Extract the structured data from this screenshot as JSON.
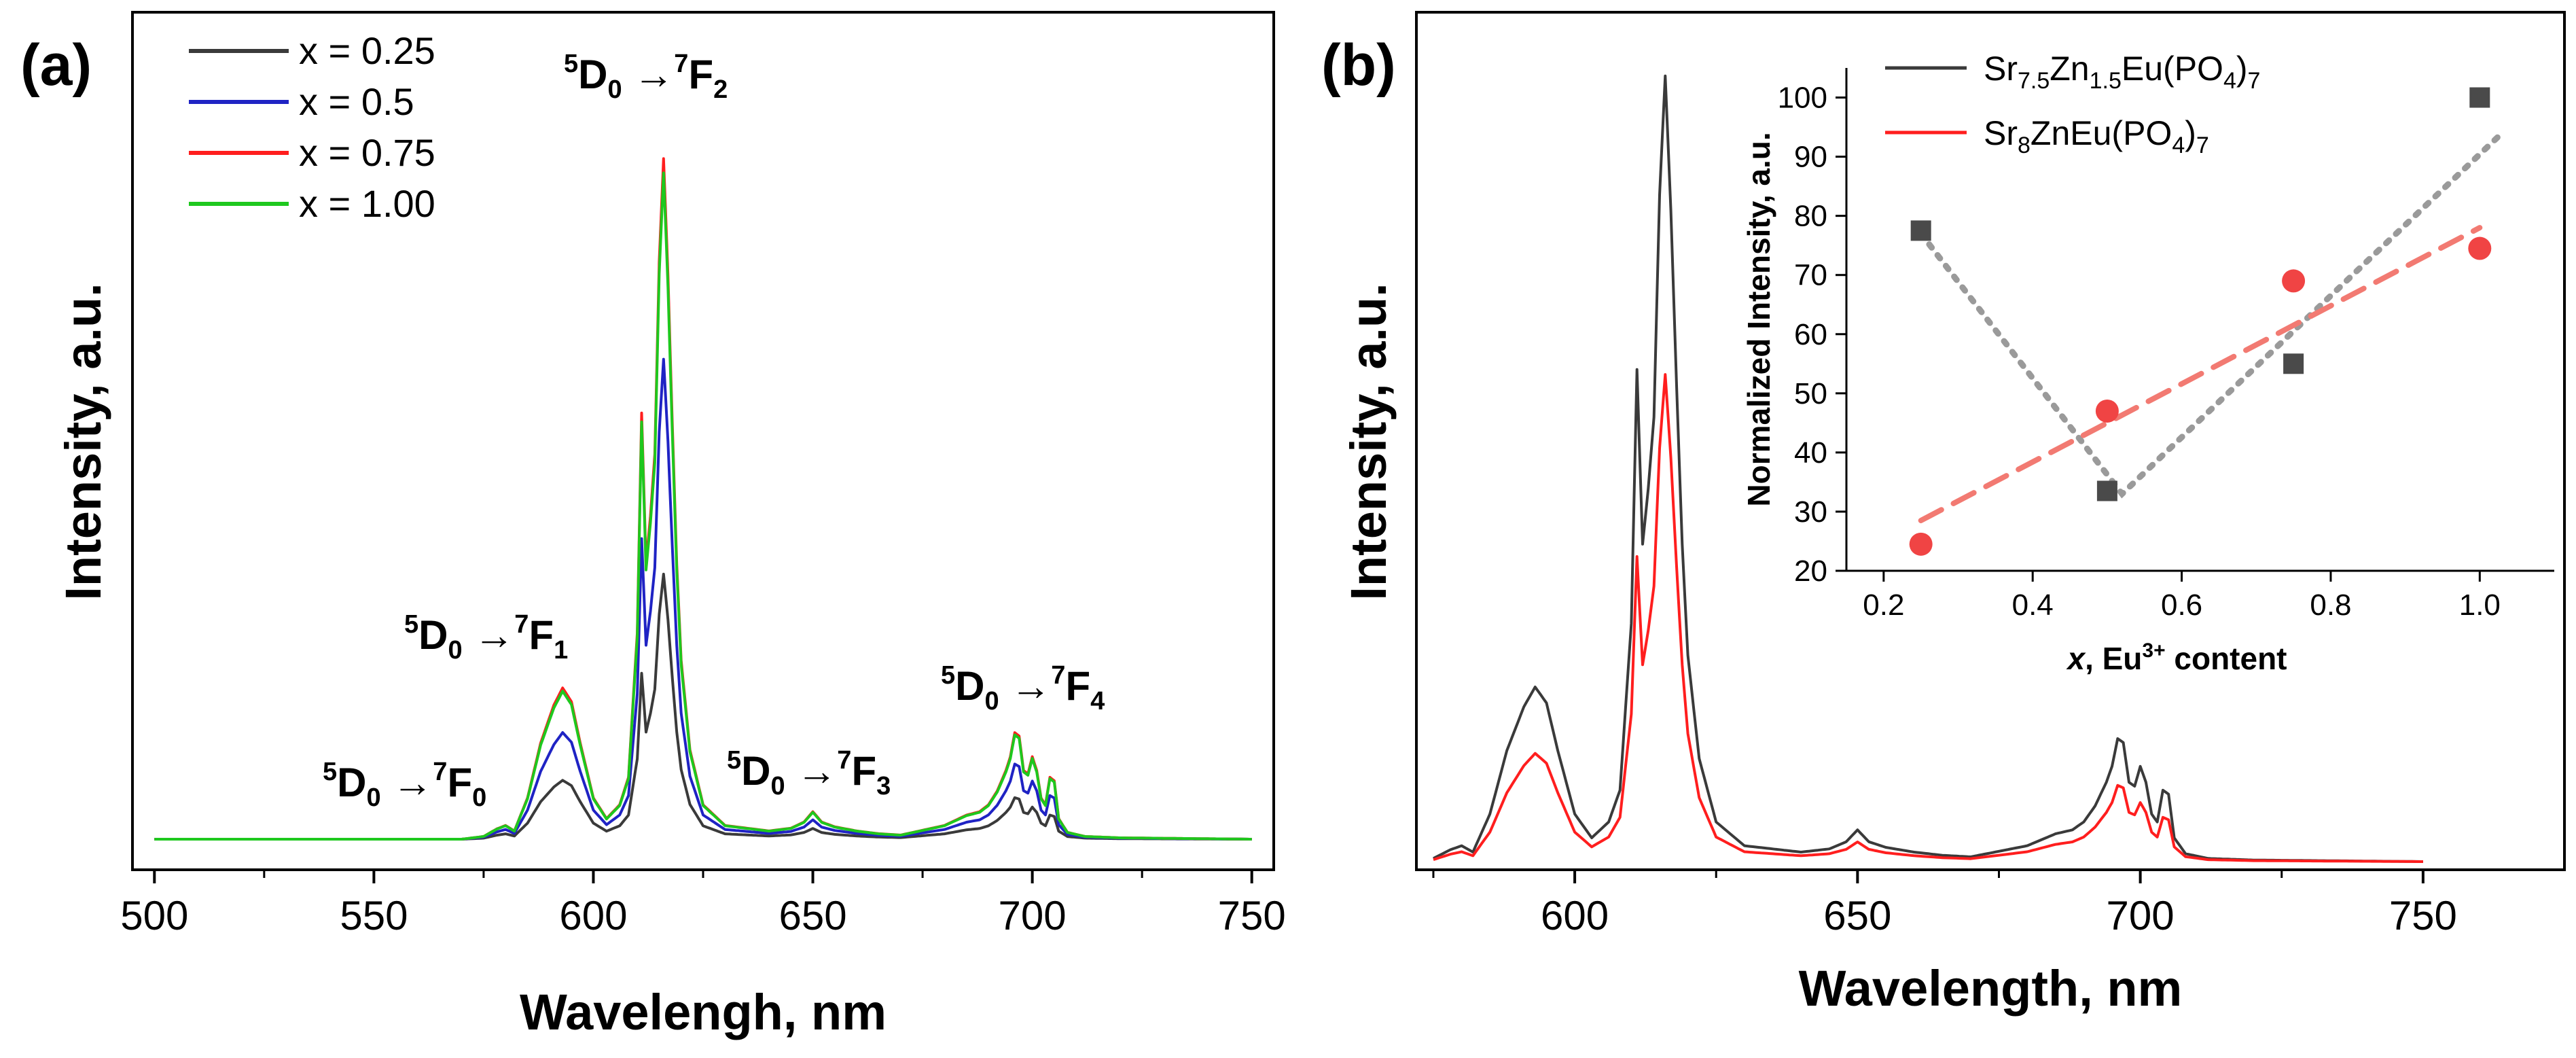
{
  "figure": {
    "panel_a_label": "(a)",
    "panel_b_label": "(b)",
    "colors": {
      "black": "#3a3a3a",
      "blue": "#1f23c4",
      "red": "#ff1e1e",
      "green": "#1ec81e",
      "grey_dot": "#9a9a9a",
      "salmon": "#f27a72",
      "square": "#4a4a4a",
      "circle": "#f04444"
    }
  },
  "chart_data": [
    {
      "type": "line",
      "title": "",
      "xlabel": "Wavelengh, nm",
      "ylabel": "Intensity, a.u.",
      "xlim": [
        495,
        755
      ],
      "ylim": [
        0,
        1.0
      ],
      "xticks": [
        500,
        550,
        600,
        650,
        700,
        750
      ],
      "yticks_visible": false,
      "legend_position": "top-left",
      "series": [
        {
          "name": "x = 0.25",
          "color": "#3a3a3a",
          "scale": 0.37
        },
        {
          "name": "x = 0.5",
          "color": "#1f23c4",
          "scale": 0.67
        },
        {
          "name": "x = 0.75",
          "color": "#ff1e1e",
          "scale": 0.95
        },
        {
          "name": "x = 1.00",
          "color": "#1ec81e",
          "scale": 0.93
        }
      ],
      "profile_x": [
        500,
        570,
        575,
        578,
        580,
        582,
        585,
        588,
        591,
        593,
        595,
        597,
        600,
        603,
        606,
        608,
        610,
        611,
        612,
        613,
        614,
        615,
        616,
        617,
        618,
        619,
        620,
        622,
        625,
        630,
        640,
        645,
        648,
        650,
        652,
        655,
        660,
        665,
        670,
        680,
        685,
        688,
        690,
        692,
        694,
        695,
        696,
        697,
        698,
        699,
        700,
        701,
        702,
        703,
        704,
        705,
        706,
        708,
        712,
        720,
        750
      ],
      "profile_y": [
        0,
        0,
        0.004,
        0.015,
        0.02,
        0.012,
        0.06,
        0.14,
        0.195,
        0.22,
        0.2,
        0.14,
        0.06,
        0.03,
        0.05,
        0.09,
        0.3,
        0.62,
        0.4,
        0.47,
        0.56,
        0.84,
        0.99,
        0.82,
        0.6,
        0.4,
        0.26,
        0.13,
        0.05,
        0.02,
        0.012,
        0.016,
        0.025,
        0.04,
        0.025,
        0.018,
        0.012,
        0.008,
        0.006,
        0.02,
        0.035,
        0.04,
        0.05,
        0.07,
        0.1,
        0.12,
        0.155,
        0.15,
        0.1,
        0.095,
        0.12,
        0.1,
        0.06,
        0.05,
        0.09,
        0.085,
        0.03,
        0.01,
        0.004,
        0.002,
        0
      ],
      "annotations": [
        {
          "main": "D",
          "pre": "5",
          "sub": "0",
          "arrow": " →",
          "sup": "7",
          "end": "F",
          "endsub": "2"
        },
        {
          "main": "D",
          "pre": "5",
          "sub": "0",
          "arrow": " →",
          "sup": "7",
          "end": "F",
          "endsub": "1"
        },
        {
          "main": "D",
          "pre": "5",
          "sub": "0",
          "arrow": " →",
          "sup": "7",
          "end": "F",
          "endsub": "0"
        },
        {
          "main": "D",
          "pre": "5",
          "sub": "0",
          "arrow": " →",
          "sup": "7",
          "end": "F",
          "endsub": "3"
        },
        {
          "main": "D",
          "pre": "5",
          "sub": "0",
          "arrow": " →",
          "sup": "7",
          "end": "F",
          "endsub": "4"
        }
      ]
    },
    {
      "type": "line",
      "title": "",
      "xlabel": "Wavelength, nm",
      "ylabel": "Intensity, a.u.",
      "xlim": [
        572,
        775
      ],
      "ylim": [
        0,
        1.0
      ],
      "xticks": [
        600,
        650,
        700,
        750
      ],
      "yticks_visible": false,
      "legend_position": "top-right",
      "series": [
        {
          "name": "Sr7.5Zn1.5Eu(PO4)7",
          "color": "#3a3a3a",
          "scale": 1.0
        },
        {
          "name": "Sr8ZnEu(PO4)7",
          "color": "#ff1e1e",
          "scale": 0.62
        }
      ],
      "legend_labels": [
        {
          "a": "Sr",
          "a_sub": "7.5",
          "b": "Zn",
          "b_sub": "1.5",
          "c": "Eu(PO",
          "c_sub": "4",
          "d": ")",
          "d_sub": "7"
        },
        {
          "a": "Sr",
          "a_sub": "8",
          "b": "ZnEu(PO",
          "b_sub": "4",
          "c": ")",
          "c_sub": "7",
          "d": "",
          "d_sub": ""
        }
      ],
      "inset": {
        "type": "scatter",
        "xlabel_italic": "x",
        "xlabel_rest": ", Eu",
        "xlabel_sup": "3+",
        "xlabel_end": " content",
        "ylabel": "Normalized Intensity, a.u.",
        "xlim": [
          0.15,
          1.1
        ],
        "ylim": [
          20,
          105
        ],
        "xticks": [
          "0.2",
          "0.4",
          "0.6",
          "0.8",
          "1.0"
        ],
        "yticks": [
          "20",
          "30",
          "40",
          "50",
          "60",
          "70",
          "80",
          "90",
          "100"
        ],
        "series": [
          {
            "name": "Sr7.5Zn1.5Eu(PO4)7",
            "marker": "square",
            "x": [
              0.25,
              0.5,
              0.75,
              1.0
            ],
            "y": [
              77.5,
              33.5,
              55,
              100
            ]
          },
          {
            "name": "Sr8ZnEu(PO4)7",
            "marker": "circle",
            "x": [
              0.25,
              0.5,
              0.75,
              1.0
            ],
            "y": [
              24.5,
              47,
              69,
              74.5
            ]
          }
        ],
        "fits": [
          {
            "style": "dotted",
            "color": "#9a9a9a",
            "x": [
              0.25,
              0.52,
              1.03
            ],
            "y": [
              77,
              33,
              94
            ]
          },
          {
            "style": "dashed",
            "color": "#f27a72",
            "x": [
              0.25,
              1.0
            ],
            "y": [
              28.5,
              78
            ]
          }
        ]
      }
    }
  ]
}
